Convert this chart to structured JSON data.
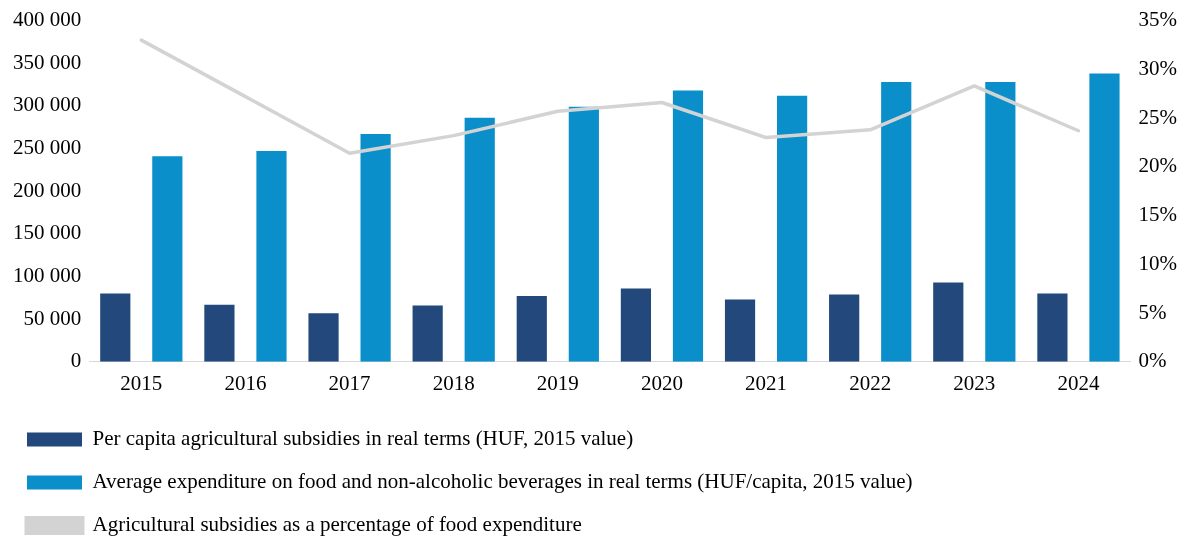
{
  "chart_data": {
    "type": "bar",
    "categories": [
      "2015",
      "2016",
      "2017",
      "2018",
      "2019",
      "2020",
      "2021",
      "2022",
      "2023",
      "2024"
    ],
    "series": [
      {
        "name": "Per capita agricultural subsidies in real terms (HUF, 2015 value)",
        "color": "#23497c",
        "values": [
          80000,
          67000,
          57000,
          66000,
          77000,
          86000,
          73000,
          79000,
          93000,
          80000
        ]
      },
      {
        "name": "Average expenditure on food and non-alcoholic beverages in real terms (HUF/capita, 2015 value)",
        "color": "#0a8fcb",
        "values": [
          241000,
          247000,
          267000,
          286000,
          299000,
          318000,
          312000,
          328000,
          328000,
          338000
        ]
      },
      {
        "name": "Agricultural subsidies as a percentage of food expenditure",
        "type": "line",
        "axis": "y2",
        "color": "#d3d3d3",
        "values": [
          33,
          27.2,
          21.4,
          23.2,
          25.7,
          26.6,
          23,
          23.8,
          28.3,
          23.7
        ]
      }
    ],
    "ylim": [
      0,
      400000
    ],
    "yticks": [
      {
        "value": 0,
        "label": "0"
      },
      {
        "value": 50000,
        "label": "50 000"
      },
      {
        "value": 100000,
        "label": "100 000"
      },
      {
        "value": 150000,
        "label": "150 000"
      },
      {
        "value": 200000,
        "label": "200 000"
      },
      {
        "value": 250000,
        "label": "250 000"
      },
      {
        "value": 300000,
        "label": "300 000"
      },
      {
        "value": 350000,
        "label": "350 000"
      },
      {
        "value": 400000,
        "label": "400 000"
      }
    ],
    "y2lim": [
      0,
      35
    ],
    "y2ticks": [
      {
        "value": 0,
        "label": "0%"
      },
      {
        "value": 5,
        "label": "5%"
      },
      {
        "value": 10,
        "label": "10%"
      },
      {
        "value": 15,
        "label": "15%"
      },
      {
        "value": 20,
        "label": "20%"
      },
      {
        "value": 25,
        "label": "25%"
      },
      {
        "value": 30,
        "label": "30%"
      },
      {
        "value": 35,
        "label": "35%"
      }
    ],
    "grid": false,
    "legend": "bottom",
    "marker": "none",
    "line_style": "solid"
  }
}
